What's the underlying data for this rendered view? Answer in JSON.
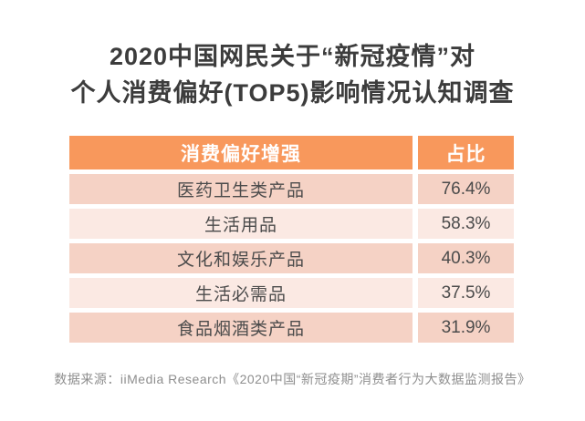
{
  "title": {
    "line1": "2020中国网民关于“新冠疫情”对",
    "line2": "个人消费偏好(TOP5)影响情况认知调查"
  },
  "table": {
    "headers": [
      "消费偏好增强",
      "占比"
    ],
    "rows": [
      {
        "label": "医药卫生类产品",
        "value": "76.4%"
      },
      {
        "label": "生活用品",
        "value": "58.3%"
      },
      {
        "label": "文化和娱乐产品",
        "value": "40.3%"
      },
      {
        "label": "生活必需品",
        "value": "37.5%"
      },
      {
        "label": "食品烟酒类产品",
        "value": "31.9%"
      }
    ]
  },
  "footer": {
    "source": "数据来源：iiMedia Research《2020中国“新冠疫期”消费者行为大数据监测报告》"
  },
  "colors": {
    "header_bg": "#f8985c",
    "row_odd_bg": "#f5d2c5",
    "row_even_bg": "#fbe9e3",
    "header_text": "#ffffff",
    "title_text": "#3c3c3c",
    "body_text": "#4b4b4b",
    "source_text": "#8e8e8e"
  },
  "chart_data": {
    "type": "table",
    "title": "2020中国网民关于“新冠疫情”对个人消费偏好(TOP5)影响情况认知调查",
    "columns": [
      "消费偏好增强",
      "占比"
    ],
    "categories": [
      "医药卫生类产品",
      "生活用品",
      "文化和娱乐产品",
      "生活必需品",
      "食品烟酒类产品"
    ],
    "values_percent": [
      76.4,
      58.3,
      40.3,
      37.5,
      31.9
    ],
    "source": "数据来源：iiMedia Research《2020中国“新冠疫期”消费者行为大数据监测报告》"
  }
}
